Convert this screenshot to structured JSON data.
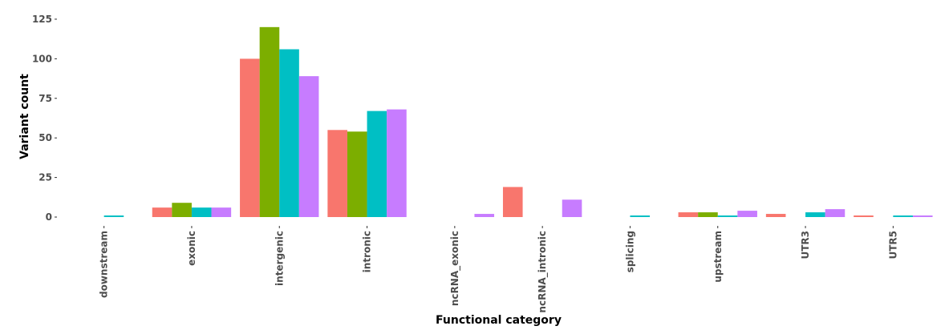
{
  "chart_data": {
    "type": "bar",
    "title": "",
    "xlabel": "Functional category",
    "ylabel": "Variant count",
    "categories": [
      "downstream",
      "exonic",
      "intergenic",
      "intronic",
      "ncRNA_exonic",
      "ncRNA_intronic",
      "splicing",
      "upstream",
      "UTR3",
      "UTR5"
    ],
    "series": [
      {
        "color": "#F8766D",
        "values": [
          0,
          6,
          100,
          55,
          0,
          19,
          0,
          3,
          2,
          1
        ]
      },
      {
        "color": "#7CAE00",
        "values": [
          0,
          9,
          120,
          54,
          0,
          0,
          0,
          3,
          0,
          0
        ]
      },
      {
        "color": "#00BFC4",
        "values": [
          1,
          6,
          106,
          67,
          0,
          0,
          1,
          1,
          3,
          1
        ]
      },
      {
        "color": "#C77CFF",
        "values": [
          0,
          6,
          89,
          68,
          2,
          11,
          0,
          4,
          5,
          1
        ]
      }
    ],
    "ylim": [
      0,
      127
    ],
    "yticks": [
      0,
      25,
      50,
      75,
      100,
      125
    ],
    "grid": false,
    "legend": "none"
  }
}
